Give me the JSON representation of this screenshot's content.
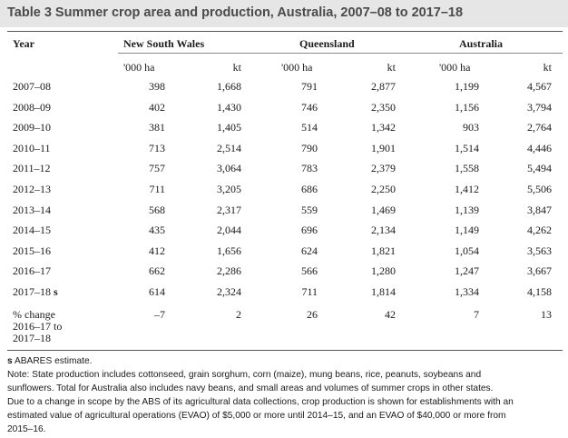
{
  "title": "Table 3 Summer crop area and production, Australia, 2007–08 to 2017–18",
  "headers": {
    "year": "Year",
    "regions": [
      "New South Wales",
      "Queensland",
      "Australia"
    ],
    "units": [
      "'000 ha",
      "kt",
      "'000 ha",
      "kt",
      "'000 ha",
      "kt"
    ]
  },
  "rows": [
    {
      "year": "2007–08",
      "values": [
        "398",
        "1,668",
        "791",
        "2,877",
        "1,199",
        "4,567"
      ]
    },
    {
      "year": "2008–09",
      "values": [
        "402",
        "1,430",
        "746",
        "2,350",
        "1,156",
        "3,794"
      ]
    },
    {
      "year": "2009–10",
      "values": [
        "381",
        "1,405",
        "514",
        "1,342",
        "903",
        "2,764"
      ]
    },
    {
      "year": "2010–11",
      "values": [
        "713",
        "2,514",
        "790",
        "1,901",
        "1,514",
        "4,446"
      ]
    },
    {
      "year": "2011–12",
      "values": [
        "757",
        "3,064",
        "783",
        "2,379",
        "1,558",
        "5,494"
      ]
    },
    {
      "year": "2012–13",
      "values": [
        "711",
        "3,205",
        "686",
        "2,250",
        "1,412",
        "5,506"
      ]
    },
    {
      "year": "2013–14",
      "values": [
        "568",
        "2,317",
        "559",
        "1,469",
        "1,139",
        "3,847"
      ]
    },
    {
      "year": "2014–15",
      "values": [
        "435",
        "2,044",
        "696",
        "2,134",
        "1,149",
        "4,262"
      ]
    },
    {
      "year": "2015–16",
      "values": [
        "412",
        "1,656",
        "624",
        "1,821",
        "1,054",
        "3,563"
      ]
    },
    {
      "year": "2016–17",
      "values": [
        "662",
        "2,286",
        "566",
        "1,280",
        "1,247",
        "3,667"
      ]
    },
    {
      "year": "2017–18",
      "flag": "s",
      "values": [
        "614",
        "2,324",
        "711",
        "1,814",
        "1,334",
        "4,158"
      ]
    }
  ],
  "pct_change": {
    "label_lines": [
      "% change",
      "2016–17 to",
      "2017–18"
    ],
    "values": [
      "–7",
      "2",
      "26",
      "42",
      "7",
      "13"
    ]
  },
  "notes": {
    "flag_symbol": "s",
    "flag_text": " ABARES estimate.",
    "lines": [
      "Note: State production includes cottonseed, grain sorghum, corn (maize), mung beans, rice, peanuts, soybeans and",
      "sunflowers. Total for Australia also includes navy beans, and small areas and volumes of summer crops in other states.",
      "Due to a change in scope by the ABS of its agricultural data collections, crop production is shown for establishments with an",
      "estimated value of agricultural operations (EVAO) of $5,000 or more until 2014–15, and an EVAO of $40,000 or more from",
      "2015–16."
    ]
  }
}
